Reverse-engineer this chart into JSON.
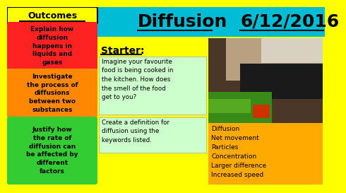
{
  "bg_color": "#ffff00",
  "header_color": "#00bcd4",
  "header_text": "Diffusion",
  "header_date": "6/12/2016",
  "outcomes_label": "Outcomes",
  "outcomes_bg": "#ffff00",
  "outcome_boxes": [
    {
      "text": "Explain how\ndiffusion\nhappens in\nliquids and\ngases",
      "color": "#ff2222"
    },
    {
      "text": "Investigate\nthe process of\ndiffusions\nbetween two\nsubstances",
      "color": "#ff8800"
    },
    {
      "text": "Justify how\nthe rate of\ndiffusion can\nbe affected by\ndifferent\nfactors",
      "color": "#33cc33"
    }
  ],
  "starter_label": "Starter:",
  "starter_box1_text": "Imagine your favourite\nfood is being cooked in\nthe kitchen. How does\nthe smell of the food\nget to you?",
  "starter_box2_text": "Create a definition for\ndiffusion using the\nkeywords listed.",
  "keywords": [
    "Diffusion",
    "Net movement",
    "Particles",
    "Concentration",
    "Larger difference",
    "Increased speed"
  ],
  "keywords_bg": "#ffaa00",
  "starter_text_bg": "#ccffcc",
  "font_color": "#000000"
}
